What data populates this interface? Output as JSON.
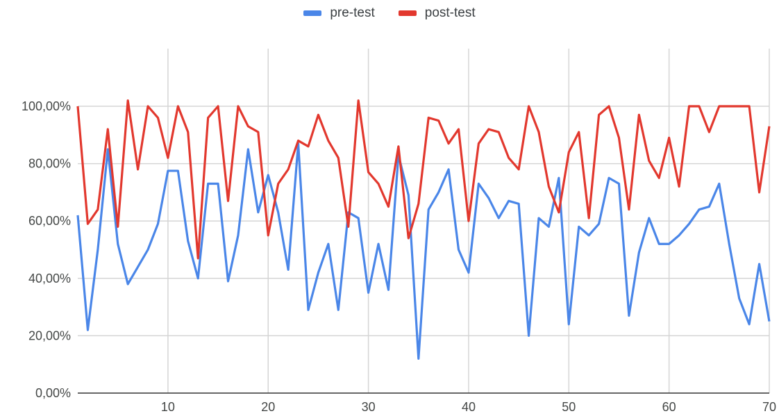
{
  "chart_data": {
    "type": "line",
    "title": "",
    "xlabel": "",
    "ylabel": "",
    "x": [
      1,
      2,
      3,
      4,
      5,
      6,
      7,
      8,
      9,
      10,
      11,
      12,
      13,
      14,
      15,
      16,
      17,
      18,
      19,
      20,
      21,
      22,
      23,
      24,
      25,
      26,
      27,
      28,
      29,
      30,
      31,
      32,
      33,
      34,
      35,
      36,
      37,
      38,
      39,
      40,
      41,
      42,
      43,
      44,
      45,
      46,
      47,
      48,
      49,
      50,
      51,
      52,
      53,
      54,
      55,
      56,
      57,
      58,
      59,
      60,
      61,
      62,
      63,
      64,
      65,
      66,
      67,
      68,
      69,
      70
    ],
    "xlim": [
      1,
      70
    ],
    "xticks": [
      10,
      20,
      30,
      40,
      50,
      60,
      70
    ],
    "ylim": [
      0,
      1.0
    ],
    "yticks": [
      0,
      0.2,
      0.4,
      0.6,
      0.8,
      1.0
    ],
    "ytick_labels": [
      "0,00%",
      "20,00%",
      "40,00%",
      "60,00%",
      "80,00%",
      "100,00%"
    ],
    "grid": true,
    "legend_position": "top-center",
    "series": [
      {
        "name": "pre-test",
        "color": "#4a86e8",
        "values": [
          0.62,
          0.22,
          0.5,
          0.85,
          0.52,
          0.38,
          0.44,
          0.5,
          0.59,
          0.775,
          0.775,
          0.53,
          0.4,
          0.73,
          0.73,
          0.39,
          0.55,
          0.85,
          0.63,
          0.76,
          0.63,
          0.43,
          0.87,
          0.29,
          0.42,
          0.52,
          0.29,
          0.63,
          0.61,
          0.35,
          0.52,
          0.36,
          0.83,
          0.69,
          0.12,
          0.64,
          0.7,
          0.78,
          0.5,
          0.42,
          0.73,
          0.68,
          0.61,
          0.67,
          0.66,
          0.2,
          0.61,
          0.58,
          0.75,
          0.24,
          0.58,
          0.55,
          0.59,
          0.75,
          0.73,
          0.27,
          0.49,
          0.61,
          0.52,
          0.52,
          0.55,
          0.59,
          0.64,
          0.65,
          0.73,
          0.52,
          0.33,
          0.24,
          0.45,
          0.25
        ]
      },
      {
        "name": "post-test",
        "color": "#e2382e",
        "values": [
          1.0,
          0.59,
          0.64,
          0.92,
          0.58,
          1.02,
          0.78,
          1.0,
          0.96,
          0.82,
          1.0,
          0.91,
          0.47,
          0.96,
          1.0,
          0.67,
          1.0,
          0.93,
          0.91,
          0.55,
          0.73,
          0.78,
          0.88,
          0.86,
          0.97,
          0.88,
          0.82,
          0.58,
          1.02,
          0.77,
          0.73,
          0.65,
          0.86,
          0.54,
          0.66,
          0.96,
          0.95,
          0.87,
          0.92,
          0.6,
          0.87,
          0.92,
          0.91,
          0.82,
          0.78,
          1.0,
          0.91,
          0.72,
          0.63,
          0.84,
          0.91,
          0.61,
          0.97,
          1.0,
          0.89,
          0.64,
          0.97,
          0.81,
          0.75,
          0.89,
          0.72,
          1.0,
          1.0,
          0.91,
          1.0,
          1.0,
          1.0,
          1.0,
          0.7,
          0.93
        ]
      }
    ]
  }
}
